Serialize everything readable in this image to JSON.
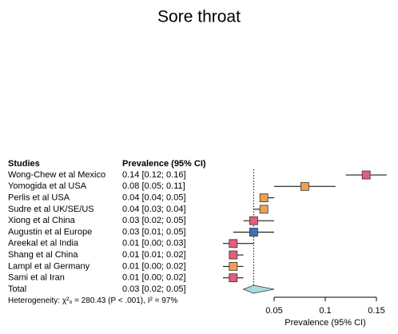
{
  "chart_data": {
    "type": "forest",
    "title": "Sore throat",
    "column_headers": [
      "Studies",
      "Prevalence (95% CI)"
    ],
    "studies": [
      "Wong-Chew et al Mexico",
      "Yomogida et al USA",
      "Perlis et al USA",
      "Sudre et al UK/SE/US",
      "Xiong et al China",
      "Augustin et al Europe",
      "Areekal et al India",
      "Shang et al China",
      "Lampl et al Germany",
      "Sami et al Iran"
    ],
    "value_labels": [
      "0.14 [0.12; 0.16]",
      "0.08 [0.05; 0.11]",
      "0.04 [0.04; 0.05]",
      "0.04 [0.03; 0.04]",
      "0.03 [0.02; 0.05]",
      "0.03 [0.01; 0.05]",
      "0.01 [0.00; 0.03]",
      "0.01 [0.01; 0.02]",
      "0.01 [0.00; 0.02]",
      "0.01 [0.00; 0.02]"
    ],
    "estimates": [
      0.14,
      0.08,
      0.04,
      0.04,
      0.03,
      0.03,
      0.01,
      0.01,
      0.01,
      0.01
    ],
    "lower": [
      0.12,
      0.05,
      0.04,
      0.03,
      0.02,
      0.01,
      0.0,
      0.01,
      0.0,
      0.0
    ],
    "upper": [
      0.16,
      0.11,
      0.05,
      0.04,
      0.05,
      0.05,
      0.03,
      0.02,
      0.02,
      0.02
    ],
    "colors": [
      "#e35d7c",
      "#f0a050",
      "#f0a050",
      "#f0a050",
      "#e35d7c",
      "#3f70b8",
      "#e35d7c",
      "#e35d7c",
      "#f0a050",
      "#e35d7c"
    ],
    "total": {
      "label": "Total",
      "value_label": "0.03 [0.02; 0.05]",
      "estimate": 0.03,
      "lower": 0.02,
      "upper": 0.05,
      "color": "#a8dde0"
    },
    "heterogeneity": "Heterogeneity: χ²₉ = 280.43 (P < .001), I² = 97%",
    "xlabel": "Prevalence (95% CI)",
    "xlim": [
      0.05,
      0.15
    ],
    "xticks": [
      0.05,
      0.1,
      0.15
    ]
  }
}
